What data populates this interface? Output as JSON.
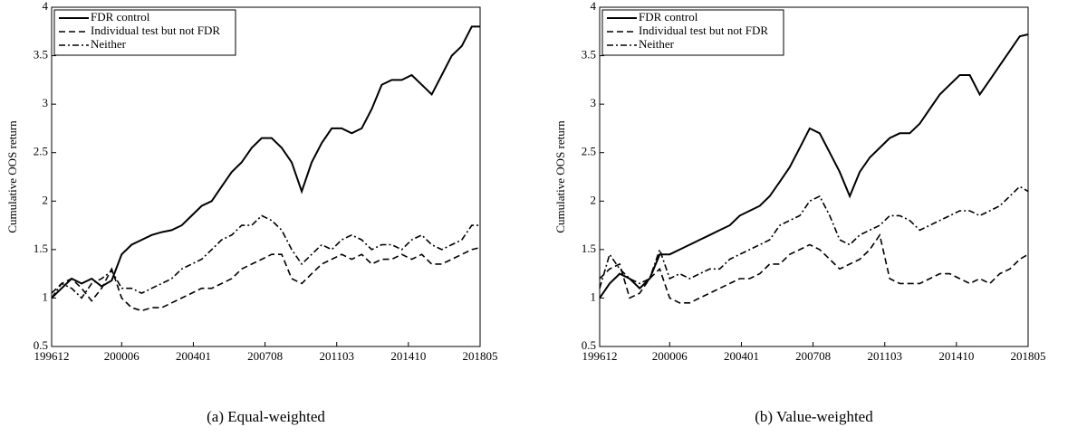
{
  "chart_data": [
    {
      "type": "line",
      "caption": "(a) Equal-weighted",
      "ylabel": "Cumulative OOS return",
      "x": [
        "199612",
        "199706",
        "199712",
        "199806",
        "199812",
        "199906",
        "199912",
        "200006",
        "200012",
        "200106",
        "200112",
        "200206",
        "200212",
        "200306",
        "200312",
        "200406",
        "200412",
        "200506",
        "200512",
        "200606",
        "200612",
        "200706",
        "200712",
        "200806",
        "200812",
        "200906",
        "200912",
        "201006",
        "201012",
        "201106",
        "201112",
        "201206",
        "201212",
        "201306",
        "201312",
        "201406",
        "201412",
        "201506",
        "201512",
        "201606",
        "201612",
        "201706",
        "201712",
        "201805"
      ],
      "xlim": [
        "199612",
        "201805"
      ],
      "xticks": [
        "199612",
        "200006",
        "200401",
        "200708",
        "201103",
        "201410",
        "201805"
      ],
      "ylim": [
        0.5,
        4
      ],
      "yticks": [
        0.5,
        1,
        1.5,
        2,
        2.5,
        3,
        3.5,
        4
      ],
      "legend": "upper left",
      "series": [
        {
          "name": "FDR control",
          "color": "#000000",
          "style": "solid",
          "values": [
            1.0,
            1.1,
            1.2,
            1.15,
            1.2,
            1.12,
            1.18,
            1.45,
            1.55,
            1.6,
            1.65,
            1.68,
            1.7,
            1.75,
            1.85,
            1.95,
            2.0,
            2.15,
            2.3,
            2.4,
            2.55,
            2.65,
            2.65,
            2.55,
            2.4,
            2.1,
            2.4,
            2.6,
            2.75,
            2.75,
            2.7,
            2.75,
            2.95,
            3.2,
            3.25,
            3.25,
            3.3,
            3.2,
            3.1,
            3.3,
            3.5,
            3.6,
            3.8,
            3.8
          ]
        },
        {
          "name": "Individual test but not FDR",
          "color": "#000000",
          "style": "dashed",
          "values": [
            1.05,
            1.15,
            1.2,
            1.1,
            0.97,
            1.1,
            1.3,
            1.0,
            0.9,
            0.87,
            0.9,
            0.9,
            0.95,
            1.0,
            1.05,
            1.1,
            1.1,
            1.15,
            1.2,
            1.3,
            1.35,
            1.4,
            1.45,
            1.45,
            1.2,
            1.15,
            1.25,
            1.35,
            1.4,
            1.45,
            1.4,
            1.45,
            1.35,
            1.4,
            1.4,
            1.45,
            1.4,
            1.45,
            1.35,
            1.35,
            1.4,
            1.45,
            1.5,
            1.52
          ]
        },
        {
          "name": "Neither",
          "color": "#000000",
          "style": "dashdot",
          "values": [
            1.0,
            1.15,
            1.1,
            1.0,
            1.15,
            1.2,
            1.28,
            1.1,
            1.1,
            1.05,
            1.1,
            1.15,
            1.2,
            1.3,
            1.35,
            1.4,
            1.5,
            1.6,
            1.65,
            1.75,
            1.75,
            1.85,
            1.8,
            1.7,
            1.5,
            1.35,
            1.45,
            1.55,
            1.5,
            1.6,
            1.65,
            1.6,
            1.5,
            1.55,
            1.55,
            1.5,
            1.6,
            1.65,
            1.55,
            1.5,
            1.55,
            1.6,
            1.75,
            1.75
          ]
        }
      ]
    },
    {
      "type": "line",
      "caption": "(b) Value-weighted",
      "ylabel": "Cumulative OOS return",
      "x": [
        "199612",
        "199706",
        "199712",
        "199806",
        "199812",
        "199906",
        "199912",
        "200006",
        "200012",
        "200106",
        "200112",
        "200206",
        "200212",
        "200306",
        "200312",
        "200406",
        "200412",
        "200506",
        "200512",
        "200606",
        "200612",
        "200706",
        "200712",
        "200806",
        "200812",
        "200906",
        "200912",
        "201006",
        "201012",
        "201106",
        "201112",
        "201206",
        "201212",
        "201306",
        "201312",
        "201406",
        "201412",
        "201506",
        "201512",
        "201606",
        "201612",
        "201706",
        "201712",
        "201805"
      ],
      "xlim": [
        "199612",
        "201805"
      ],
      "xticks": [
        "199612",
        "200006",
        "200401",
        "200708",
        "201103",
        "201410",
        "201805"
      ],
      "ylim": [
        0.5,
        4
      ],
      "yticks": [
        0.5,
        1,
        1.5,
        2,
        2.5,
        3,
        3.5,
        4
      ],
      "legend": "upper left",
      "series": [
        {
          "name": "FDR control",
          "color": "#000000",
          "style": "solid",
          "values": [
            1.0,
            1.15,
            1.25,
            1.2,
            1.1,
            1.2,
            1.45,
            1.45,
            1.5,
            1.55,
            1.6,
            1.65,
            1.7,
            1.75,
            1.85,
            1.9,
            1.95,
            2.05,
            2.2,
            2.35,
            2.55,
            2.75,
            2.7,
            2.5,
            2.3,
            2.05,
            2.3,
            2.45,
            2.55,
            2.65,
            2.7,
            2.7,
            2.8,
            2.95,
            3.1,
            3.2,
            3.3,
            3.3,
            3.1,
            3.25,
            3.4,
            3.55,
            3.7,
            3.72
          ]
        },
        {
          "name": "Individual test but not FDR",
          "color": "#000000",
          "style": "dashed",
          "values": [
            1.2,
            1.3,
            1.35,
            1.0,
            1.05,
            1.2,
            1.3,
            1.0,
            0.95,
            0.95,
            1.0,
            1.05,
            1.1,
            1.15,
            1.2,
            1.2,
            1.25,
            1.35,
            1.35,
            1.45,
            1.5,
            1.55,
            1.5,
            1.4,
            1.3,
            1.35,
            1.4,
            1.5,
            1.65,
            1.2,
            1.15,
            1.15,
            1.15,
            1.2,
            1.25,
            1.25,
            1.2,
            1.15,
            1.2,
            1.15,
            1.25,
            1.3,
            1.4,
            1.45
          ]
        },
        {
          "name": "Neither",
          "color": "#000000",
          "style": "dashdot",
          "values": [
            1.1,
            1.45,
            1.3,
            1.2,
            1.15,
            1.2,
            1.5,
            1.2,
            1.25,
            1.2,
            1.25,
            1.3,
            1.3,
            1.4,
            1.45,
            1.5,
            1.55,
            1.6,
            1.75,
            1.8,
            1.85,
            2.0,
            2.05,
            1.85,
            1.6,
            1.55,
            1.65,
            1.7,
            1.75,
            1.85,
            1.85,
            1.8,
            1.7,
            1.75,
            1.8,
            1.85,
            1.9,
            1.9,
            1.85,
            1.9,
            1.95,
            2.05,
            2.15,
            2.1
          ]
        }
      ]
    }
  ]
}
